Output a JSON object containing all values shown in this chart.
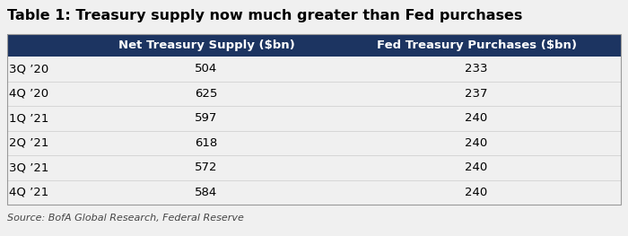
{
  "title": "Table 1: Treasury supply now much greater than Fed purchases",
  "col_headers": [
    "Net Treasury Supply ($bn)",
    "Fed Treasury Purchases ($bn)"
  ],
  "row_labels": [
    "3Q ’20",
    "4Q ’20",
    "1Q ’21",
    "2Q ’21",
    "3Q ’21",
    "4Q ’21"
  ],
  "col1_values": [
    "504",
    "625",
    "597",
    "618",
    "572",
    "584"
  ],
  "col2_values": [
    "233",
    "237",
    "240",
    "240",
    "240",
    "240"
  ],
  "source_text": "Source: BofA Global Research, Federal Reserve",
  "header_bg": "#1c3461",
  "header_fg": "#ffffff",
  "bg_color": "#f0f0f0",
  "row_fg": "#000000",
  "title_fontsize": 11.5,
  "header_fontsize": 9.5,
  "data_fontsize": 9.5,
  "source_fontsize": 8,
  "border_color": "#999999",
  "sep_color": "#cccccc"
}
